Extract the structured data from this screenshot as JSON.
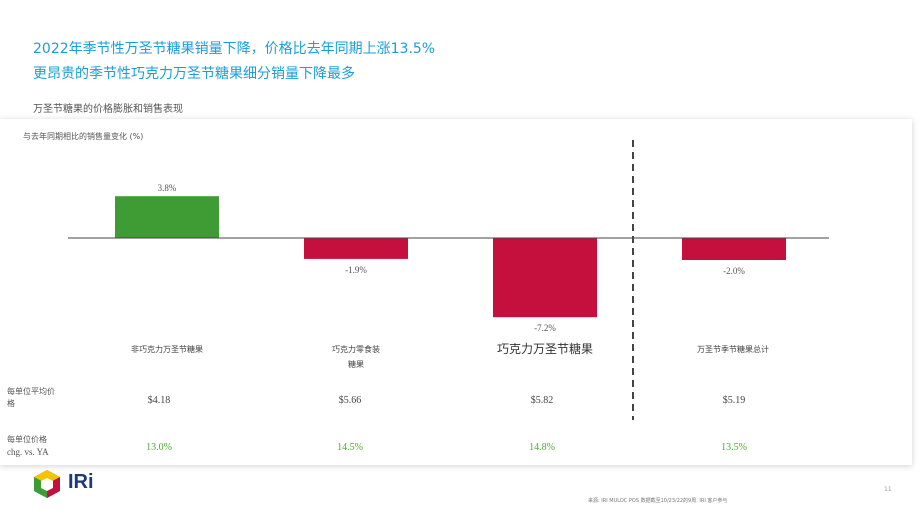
{
  "header": {
    "title_line1": "2022年季节性万圣节糖果销量下降，价格比去年同期上涨13.5%",
    "title_line2": "更昂贵的季节性巧克力万圣节糖果细分销量下降最多",
    "subtitle": "万圣节糖果的价格膨胀和销售表现"
  },
  "chart_data": {
    "type": "bar",
    "title": "",
    "ylabel": "与去年同期相比的销售量变化 (%)",
    "categories": [
      "非巧克力万圣节糖果",
      "巧克力零食装糖果",
      "巧克力万圣节糖果",
      "万圣节季节糖果总计"
    ],
    "values": [
      3.8,
      -1.9,
      -7.2,
      -2.0
    ],
    "value_labels": [
      "3.8%",
      "-1.9%",
      "-7.2%",
      "-2.0%"
    ],
    "ylim": [
      -8,
      5
    ],
    "grid": false,
    "colors": {
      "positive": "#3f9c35",
      "negative": "#c50f3c"
    },
    "divider_after_index": 2
  },
  "table": {
    "price_label": "每单位平均价格",
    "chg_label_line1": "每单位价格",
    "chg_label_line2": "chg. vs. YA",
    "prices": [
      "$4.18",
      "$5.66",
      "$5.82",
      "$5.19"
    ],
    "changes": [
      "13.0%",
      "14.5%",
      "14.8%",
      "13.5%"
    ]
  },
  "footer": {
    "logo_text": "IRi",
    "source": "来源: IRI MULOC POS 数据截至10/23/22的9周. IRI 客户参与",
    "page_number": "11"
  }
}
